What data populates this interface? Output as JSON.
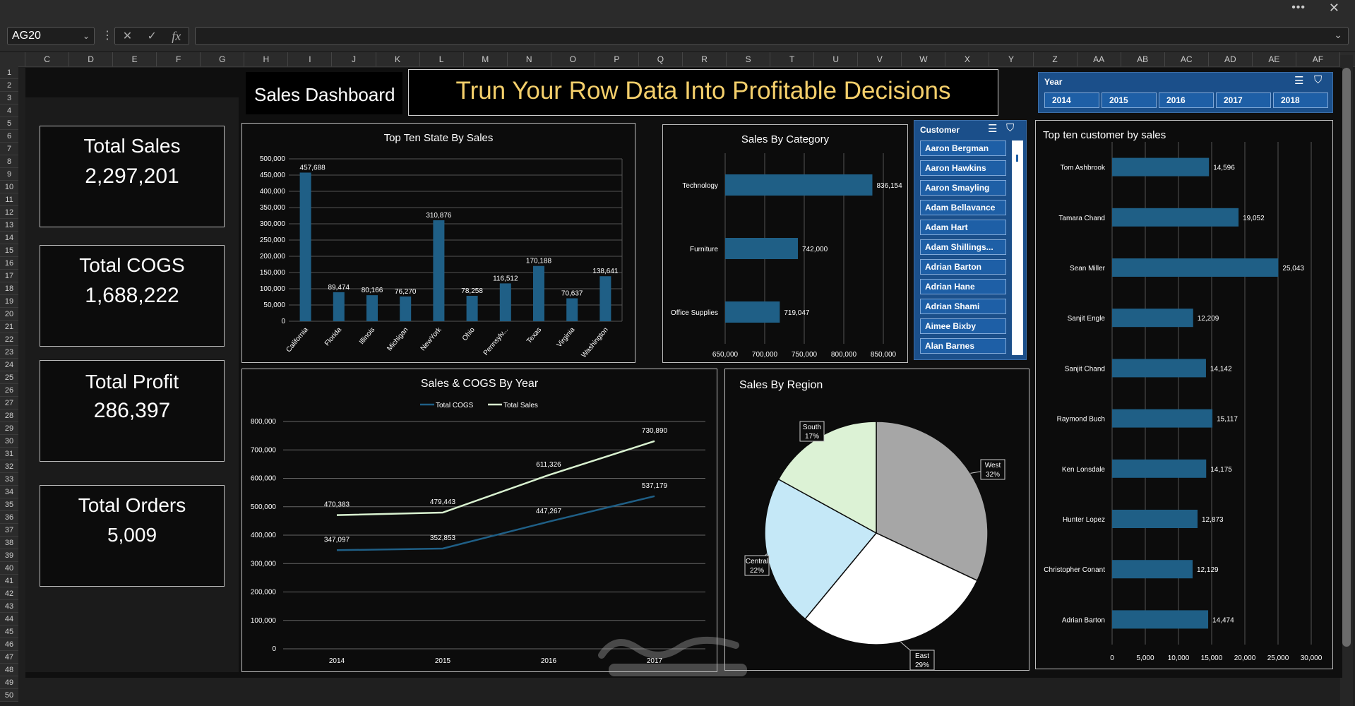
{
  "window": {
    "more": "•••",
    "close": "✕"
  },
  "formula_bar": {
    "name_box": "AG20",
    "fx": "fx",
    "cancel": "✕",
    "enter": "✓",
    "formula": ""
  },
  "columns": [
    "C",
    "D",
    "E",
    "F",
    "G",
    "H",
    "I",
    "J",
    "K",
    "L",
    "M",
    "N",
    "O",
    "P",
    "Q",
    "R",
    "S",
    "T",
    "U",
    "V",
    "W",
    "X",
    "Y",
    "Z",
    "AA",
    "AB",
    "AC",
    "AD",
    "AE",
    "AF"
  ],
  "rows": [
    "1",
    "2",
    "3",
    "4",
    "5",
    "6",
    "7",
    "8",
    "9",
    "10",
    "11",
    "12",
    "13",
    "14",
    "15",
    "16",
    "17",
    "18",
    "19",
    "20",
    "21",
    "22",
    "23",
    "24",
    "25",
    "26",
    "27",
    "28",
    "29",
    "30",
    "31",
    "32",
    "33",
    "34",
    "35",
    "36",
    "37",
    "38",
    "39",
    "40",
    "41",
    "42",
    "43",
    "44",
    "45",
    "46",
    "47",
    "48",
    "49",
    "50"
  ],
  "dashboard": {
    "title": "Sales Dashboard",
    "banner": "Trun Your Row Data Into Profitable Decisions",
    "banner_color": "#f4cf6b"
  },
  "kpis": [
    {
      "label": "Total Sales",
      "value": "2,297,201"
    },
    {
      "label": "Total COGS",
      "value": "1,688,222"
    },
    {
      "label": "Total Profit",
      "value": "286,397"
    },
    {
      "label": "Total Orders",
      "value": "5,009"
    }
  ],
  "colors": {
    "bar": "#1f5f86",
    "cogs_line": "#1f5f86",
    "sales_line": "#d9f2d0",
    "slicer": "#1e5fa6"
  },
  "customer_slicer": {
    "title": "Customer",
    "items": [
      "Aaron Bergman",
      "Aaron Hawkins",
      "Aaron Smayling",
      "Adam Bellavance",
      "Adam Hart",
      "Adam Shillings...",
      "Adrian Barton",
      "Adrian Hane",
      "Adrian Shami",
      "Aimee Bixby",
      "Alan Barnes"
    ]
  },
  "year_slicer": {
    "title": "Year",
    "items": [
      "2014",
      "2015",
      "2016",
      "2017",
      "2018"
    ]
  },
  "chart_data": [
    {
      "type": "bar",
      "title": "Top Ten State By Sales",
      "categories": [
        "California",
        "Florida",
        "Illinois",
        "Michigan",
        "NewYork",
        "Ohio",
        "Pennsylv...",
        "Texas",
        "Virginia",
        "Washington"
      ],
      "values": [
        457688,
        89474,
        80166,
        76270,
        310876,
        78258,
        116512,
        170188,
        70637,
        138641
      ],
      "labels": [
        "457,688",
        "89,474",
        "80,166",
        "76,270",
        "310,876",
        "78,258",
        "116,512",
        "170,188",
        "70,637",
        "138,641"
      ],
      "ylim": [
        0,
        500000
      ],
      "ticks": [
        "0",
        "50,000",
        "100,000",
        "150,000",
        "200,000",
        "250,000",
        "300,000",
        "350,000",
        "400,000",
        "450,000",
        "500,000"
      ]
    },
    {
      "type": "bar",
      "orientation": "horizontal",
      "title": "Sales By Category",
      "categories": [
        "Technology",
        "Furniture",
        "Office Supplies"
      ],
      "values": [
        836154,
        742000,
        719047
      ],
      "labels": [
        "836,154",
        "742,000",
        "719,047"
      ],
      "xlim": [
        650000,
        850000
      ],
      "ticks": [
        "650,000",
        "700,000",
        "750,000",
        "800,000",
        "850,000"
      ]
    },
    {
      "type": "line",
      "title": "Sales & COGS By Year",
      "x": [
        "2014",
        "2015",
        "2016",
        "2017"
      ],
      "series": [
        {
          "name": "Total COGS",
          "values": [
            347097,
            352853,
            447267,
            537179
          ],
          "labels": [
            "347,097",
            "352,853",
            "447,267",
            "537,179"
          ]
        },
        {
          "name": "Total Sales",
          "values": [
            470383,
            479443,
            611326,
            730890
          ],
          "labels": [
            "470,383",
            "479,443",
            "611,326",
            "730,890"
          ]
        }
      ],
      "ylim": [
        0,
        800000
      ],
      "ticks": [
        "0",
        "100,000",
        "200,000",
        "300,000",
        "400,000",
        "500,000",
        "600,000",
        "700,000",
        "800,000"
      ],
      "legend": "top"
    },
    {
      "type": "pie",
      "title": "Sales By Region",
      "categories": [
        "West",
        "East",
        "Central",
        "South"
      ],
      "values": [
        32,
        29,
        22,
        17
      ],
      "labels": [
        "32%",
        "29%",
        "22%",
        "17%"
      ],
      "colors": [
        "#a6a6a6",
        "#ffffff",
        "#c5e8f7",
        "#dcf2d5"
      ]
    },
    {
      "type": "bar",
      "orientation": "horizontal",
      "title": "Top ten customer by sales",
      "categories": [
        "Tom Ashbrook",
        "Tamara Chand",
        "Sean Miller",
        "Sanjit Engle",
        "Sanjit Chand",
        "Raymond Buch",
        "Ken Lonsdale",
        "Hunter Lopez",
        "Christopher Conant",
        "Adrian Barton"
      ],
      "values": [
        14596,
        19052,
        25043,
        12209,
        14142,
        15117,
        14175,
        12873,
        12129,
        14474
      ],
      "labels": [
        "14,596",
        "19,052",
        "25,043",
        "12,209",
        "14,142",
        "15,117",
        "14,175",
        "12,873",
        "12,129",
        "14,474"
      ],
      "xlim": [
        0,
        30000
      ],
      "ticks": [
        "0",
        "5,000",
        "10,000",
        "15,000",
        "20,000",
        "25,000",
        "30,000"
      ]
    }
  ]
}
